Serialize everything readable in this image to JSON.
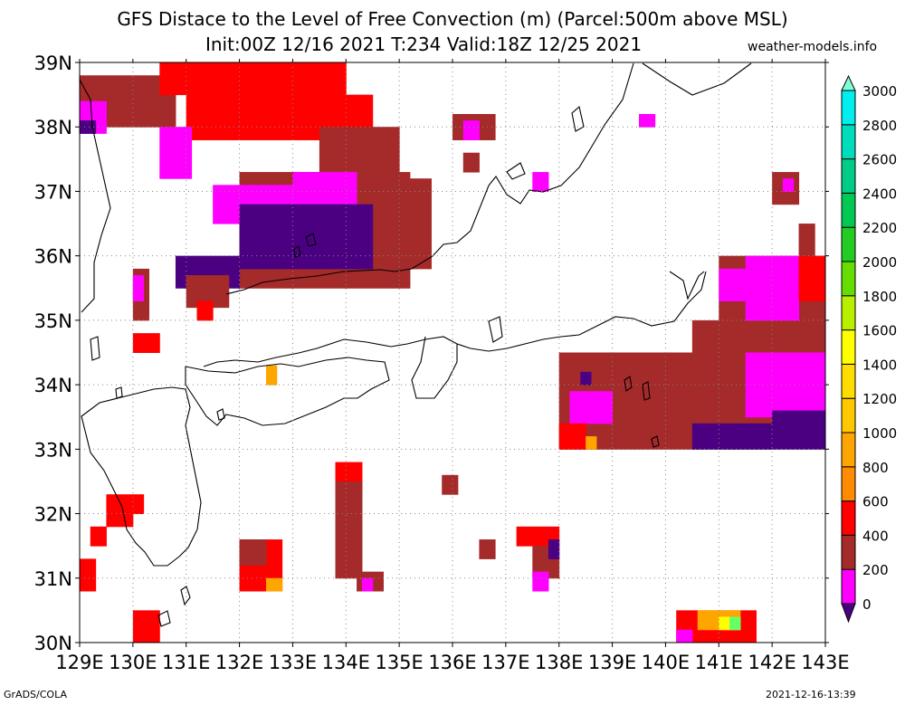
{
  "header": {
    "title": "GFS Distace to the Level of Free Convection (m) (Parcel:500m above MSL)",
    "subtitle": "Init:00Z 12/16 2021 T:234 Valid:18Z 12/25 2021",
    "site": "weather-models.info"
  },
  "footer": {
    "left": "GrADS/COLA",
    "right": "2021-12-16-13:39"
  },
  "map": {
    "lon_labels": [
      "129E",
      "130E",
      "131E",
      "132E",
      "133E",
      "134E",
      "135E",
      "136E",
      "137E",
      "138E",
      "139E",
      "140E",
      "141E",
      "142E",
      "143E"
    ],
    "lat_labels": [
      "39N",
      "38N",
      "37N",
      "36N",
      "35N",
      "34N",
      "33N",
      "32N",
      "31N",
      "30N"
    ],
    "lon_range": [
      129,
      143
    ],
    "lat_range": [
      30,
      39
    ],
    "grid": "dotted"
  },
  "legend": {
    "labels": [
      "0",
      "200",
      "400",
      "600",
      "800",
      "1000",
      "1200",
      "1400",
      "1600",
      "1800",
      "2000",
      "2200",
      "2400",
      "2600",
      "2800",
      "3000"
    ],
    "colors": [
      "#4b0082",
      "#ff00ff",
      "#a52a2a",
      "#ff0000",
      "#ff8c00",
      "#ffa500",
      "#ffc800",
      "#ffdd00",
      "#ffff00",
      "#b8f000",
      "#66dd00",
      "#22cc22",
      "#00c853",
      "#00cc88",
      "#00ddbb",
      "#00eeee",
      "#7fffd4"
    ]
  },
  "colors": {
    "purple": "#4b0082",
    "magenta": "#ff00ff",
    "brown": "#a52a2a",
    "red": "#ff0000",
    "orange": "#ffa500",
    "yellow": "#ffff00",
    "green": "#66ff66"
  }
}
